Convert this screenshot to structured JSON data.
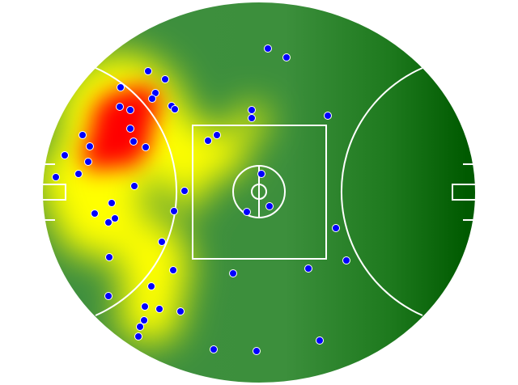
{
  "chart_data": {
    "type": "heatmap",
    "subtype": "field-density-with-points",
    "field": "australian-rules-oval",
    "grid": false,
    "legend": "none",
    "point_count": 53,
    "colors": {
      "point_fill": "#0000ff",
      "point_stroke": "#ffffff",
      "field_lines": "#ffffff",
      "low_density_left": "#3f8f3f",
      "low_density_right": "#005a00",
      "medium_density": "#ffff00",
      "high_density": "#ff0000"
    }
  }
}
